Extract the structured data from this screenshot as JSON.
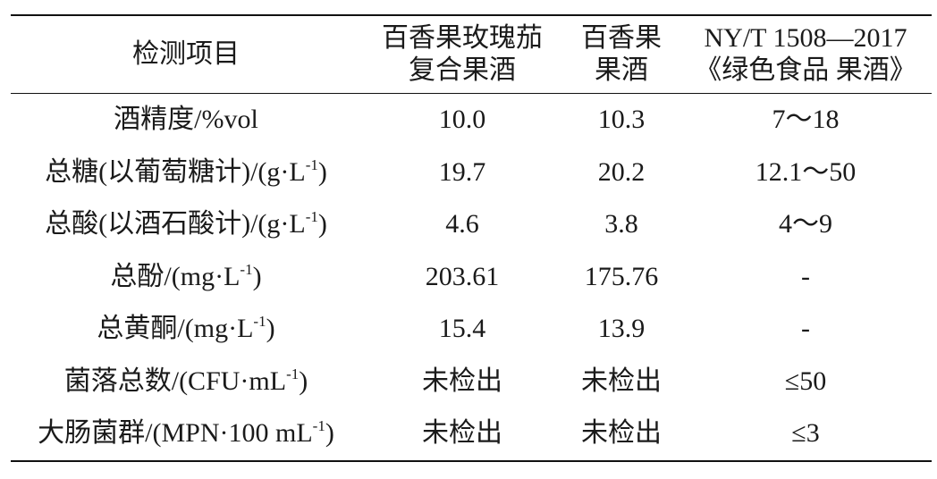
{
  "table": {
    "headers": [
      {
        "lines": [
          "检测项目"
        ]
      },
      {
        "lines": [
          "百香果玫瑰茄",
          "复合果酒"
        ]
      },
      {
        "lines": [
          "百香果",
          "果酒"
        ]
      },
      {
        "lines": [
          "NY/T 1508—2017",
          "《绿色食品 果酒》"
        ]
      }
    ],
    "rows": [
      {
        "item": {
          "pre": "酒精度/%vol",
          "sup": "",
          "post": ""
        },
        "compound": "10.0",
        "passion": "10.3",
        "standard": "7～18"
      },
      {
        "item": {
          "pre": "总糖(以葡萄糖计)/(g·L",
          "sup": "-1",
          "post": ")"
        },
        "compound": "19.7",
        "passion": "20.2",
        "standard": "12.1～50"
      },
      {
        "item": {
          "pre": "总酸(以酒石酸计)/(g·L",
          "sup": "-1",
          "post": ")"
        },
        "compound": "4.6",
        "passion": "3.8",
        "standard": "4～9"
      },
      {
        "item": {
          "pre": "总酚/(mg·L",
          "sup": "-1",
          "post": ")"
        },
        "compound": "203.61",
        "passion": "175.76",
        "standard": "-"
      },
      {
        "item": {
          "pre": "总黄酮/(mg·L",
          "sup": "-1",
          "post": ")"
        },
        "compound": "15.4",
        "passion": "13.9",
        "standard": "-"
      },
      {
        "item": {
          "pre": "菌落总数/(CFU·mL",
          "sup": "-1",
          "post": ")"
        },
        "compound": "未检出",
        "passion": "未检出",
        "standard": "≤50"
      },
      {
        "item": {
          "pre": "大肠菌群/(MPN·100 mL",
          "sup": "-1",
          "post": ")"
        },
        "compound": "未检出",
        "passion": "未检出",
        "standard": "≤3"
      }
    ]
  }
}
